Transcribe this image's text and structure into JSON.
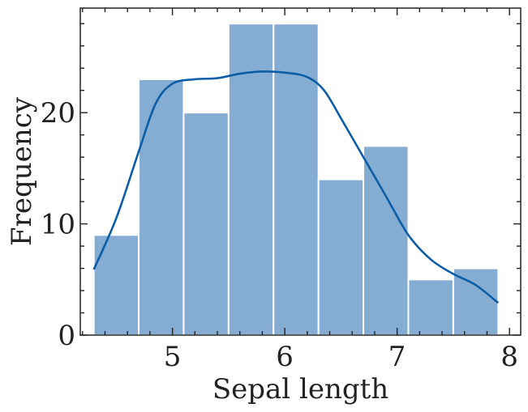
{
  "chart_data": {
    "type": "bar",
    "subtype": "histogram-with-kde",
    "xlabel": "Sepal length",
    "ylabel": "Frequency",
    "xlim": [
      4.18,
      8.1
    ],
    "ylim": [
      0,
      29.4
    ],
    "xticks": [
      5,
      6,
      7,
      8
    ],
    "yticks": [
      0,
      10,
      20
    ],
    "grid": false,
    "bins": [
      {
        "x0": 4.3,
        "x1": 4.7,
        "count": 9
      },
      {
        "x0": 4.7,
        "x1": 5.1,
        "count": 23
      },
      {
        "x0": 5.1,
        "x1": 5.5,
        "count": 20
      },
      {
        "x0": 5.5,
        "x1": 5.9,
        "count": 28
      },
      {
        "x0": 5.9,
        "x1": 6.3,
        "count": 28
      },
      {
        "x0": 6.3,
        "x1": 6.7,
        "count": 14
      },
      {
        "x0": 6.7,
        "x1": 7.1,
        "count": 17
      },
      {
        "x0": 7.1,
        "x1": 7.5,
        "count": 5
      },
      {
        "x0": 7.5,
        "x1": 7.9,
        "count": 6
      }
    ],
    "kde": [
      [
        4.3,
        5.9
      ],
      [
        4.5,
        10.5
      ],
      [
        4.7,
        16.5
      ],
      [
        4.85,
        20.8
      ],
      [
        5.0,
        22.6
      ],
      [
        5.2,
        23.0
      ],
      [
        5.4,
        23.1
      ],
      [
        5.6,
        23.5
      ],
      [
        5.8,
        23.7
      ],
      [
        6.0,
        23.6
      ],
      [
        6.2,
        23.2
      ],
      [
        6.35,
        22.0
      ],
      [
        6.5,
        19.5
      ],
      [
        6.7,
        16.0
      ],
      [
        6.9,
        12.5
      ],
      [
        7.1,
        9.0
      ],
      [
        7.3,
        6.8
      ],
      [
        7.5,
        5.5
      ],
      [
        7.7,
        4.5
      ],
      [
        7.9,
        2.9
      ]
    ],
    "colors": {
      "bar_fill": "#85acd3",
      "bar_edge": "#ffffff",
      "kde_line": "#0c5da5",
      "axis": "#222222"
    }
  }
}
